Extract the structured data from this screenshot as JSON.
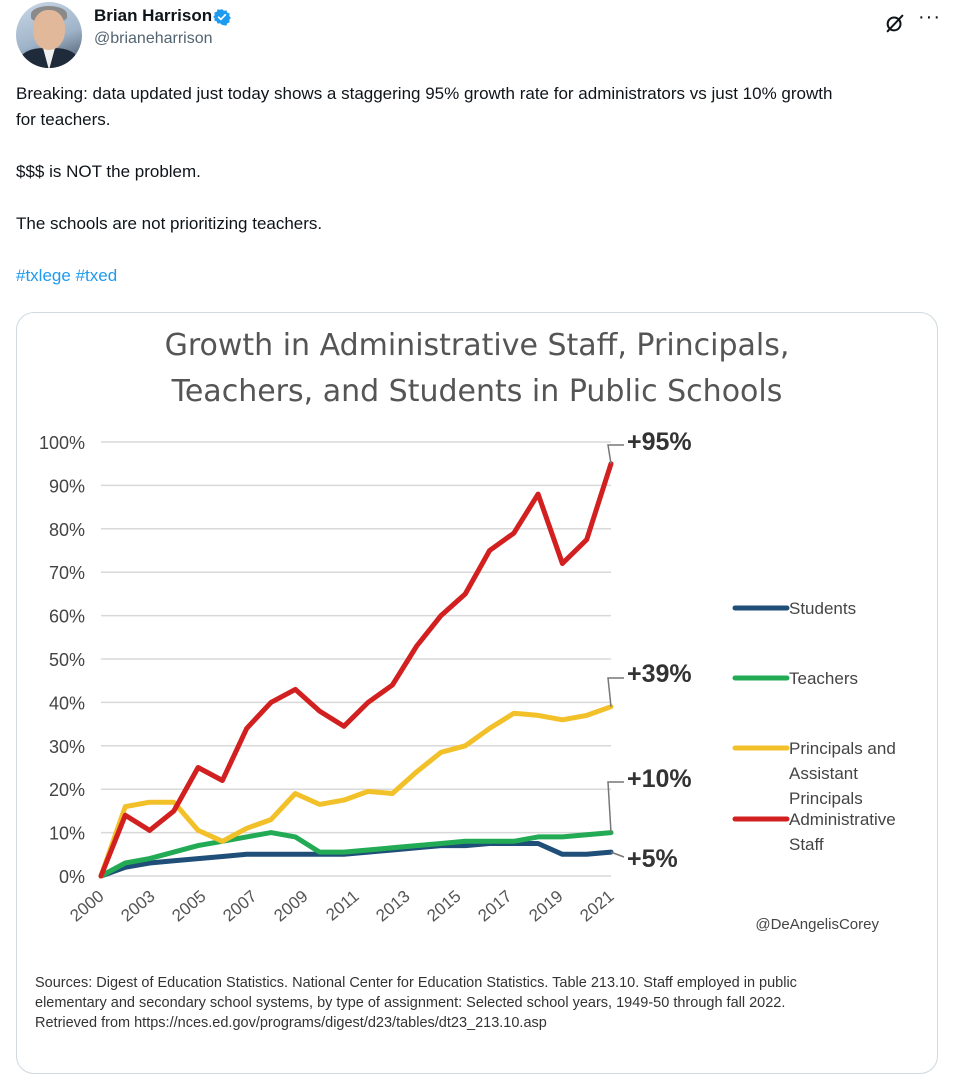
{
  "user": {
    "name": "Brian Harrison",
    "handle": "@brianeharrison"
  },
  "tweet": {
    "lines": [
      "Breaking: data updated just today shows a staggering 95% growth rate for administrators vs just 10% growth",
      "for teachers.",
      "$$$ is NOT the problem.",
      "The schools are not prioritizing teachers."
    ],
    "hashtags": [
      "#txlege",
      "#txed"
    ]
  },
  "icons": [
    "verified-badge-icon",
    "grok-icon",
    "more-options-icon"
  ],
  "colors": {
    "students": "#1f4e79",
    "teachers": "#22aa55",
    "principals": "#f2c028",
    "administrative": "#d21f1f",
    "hashtag": "#1d9bf0"
  },
  "chart_data": {
    "type": "line",
    "title": [
      "Growth in Administrative Staff, Principals,",
      "Teachers, and Students in Public Schools"
    ],
    "ylim": [
      0,
      100
    ],
    "yticks": [
      "0%",
      "10%",
      "20%",
      "30%",
      "40%",
      "50%",
      "60%",
      "70%",
      "80%",
      "90%",
      "100%"
    ],
    "x_tick_labels": [
      "2000",
      "2003",
      "2005",
      "2007",
      "2009",
      "2011",
      "2013",
      "2015",
      "2017",
      "2019",
      "2021"
    ],
    "grid": true,
    "legend_position": "right",
    "series": [
      {
        "name": "Administrative Staff",
        "legend_lines": [
          "Administrative",
          "Staff"
        ],
        "color": "#d21f1f",
        "end_label": "+95%",
        "values": [
          0,
          14,
          10.5,
          15,
          25,
          22,
          34,
          40,
          43,
          38,
          34.5,
          40,
          44,
          53,
          60,
          65,
          75,
          79,
          88,
          72,
          77.5,
          95
        ]
      },
      {
        "name": "Principals and Assistant Principals",
        "legend_lines": [
          "Principals and",
          "Assistant",
          "Principals"
        ],
        "color": "#f2c028",
        "end_label": "+39%",
        "values": [
          0,
          16,
          17,
          17,
          10.5,
          8,
          11,
          13,
          19,
          16.5,
          17.5,
          19.5,
          19,
          24,
          28.5,
          30,
          34,
          37.5,
          37,
          36,
          37,
          39
        ]
      },
      {
        "name": "Teachers",
        "legend_lines": [
          "Teachers"
        ],
        "color": "#22aa55",
        "end_label": "+10%",
        "values": [
          0,
          3,
          4,
          5.5,
          7,
          8,
          9,
          10,
          9,
          5.5,
          5.5,
          6,
          6.5,
          7,
          7.5,
          8,
          8,
          8,
          9,
          9,
          9.5,
          10
        ]
      },
      {
        "name": "Students",
        "legend_lines": [
          "Students"
        ],
        "color": "#1f4e79",
        "end_label": "+5%",
        "values": [
          0,
          2,
          3,
          3.5,
          4,
          4.5,
          5,
          5,
          5,
          5,
          5,
          5.5,
          6,
          6.5,
          7,
          7,
          7.5,
          7.5,
          7.5,
          5,
          5,
          5.5
        ]
      }
    ],
    "credit": "@DeAngelisCorey"
  },
  "sources": [
    "Sources: Digest of Education Statistics. National Center for Education Statistics. Table 213.10. Staff employed in public",
    "elementary and secondary school systems, by type of assignment: Selected school years, 1949-50 through fall 2022.",
    "Retrieved from https://nces.ed.gov/programs/digest/d23/tables/dt23_213.10.asp"
  ]
}
